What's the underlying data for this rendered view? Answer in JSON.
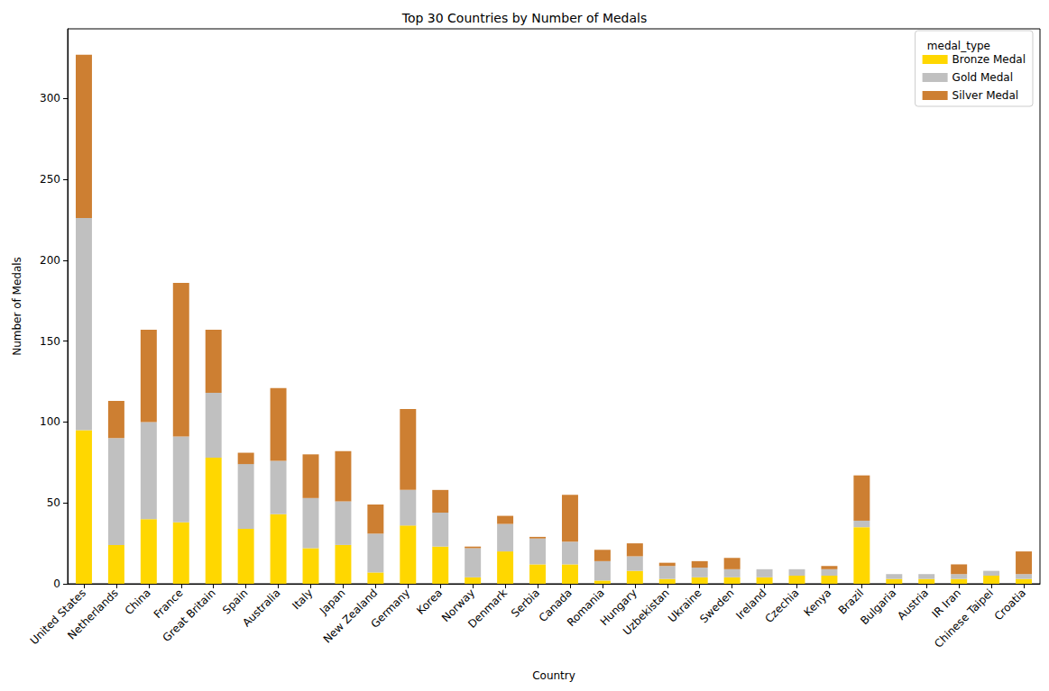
{
  "chart_data": {
    "type": "bar",
    "title": "Top 30 Countries by Number of Medals",
    "x_label": "Country",
    "y_label": "Number of Medals",
    "legend_title": "medal_type",
    "legend": "upper right",
    "stacked": true,
    "grid": false,
    "categories": [
      "United States",
      "Netherlands",
      "China",
      "France",
      "Great Britain",
      "Spain",
      "Australia",
      "Italy",
      "Japan",
      "New Zealand",
      "Germany",
      "Korea",
      "Norway",
      "Denmark",
      "Serbia",
      "Canada",
      "Romania",
      "Hungary",
      "Uzbekistan",
      "Ukraine",
      "Sweden",
      "Ireland",
      "Czechia",
      "Kenya",
      "Brazil",
      "Bulgaria",
      "Austria",
      "IR Iran",
      "Chinese Taipei",
      "Croatia"
    ],
    "series": [
      {
        "name": "Bronze Medal",
        "color": "#ffd700",
        "values": [
          95,
          24,
          40,
          38,
          78,
          34,
          43,
          22,
          24,
          7,
          36,
          23,
          4,
          20,
          12,
          12,
          2,
          8,
          3,
          4,
          4,
          4,
          5,
          5,
          35,
          3,
          3,
          3,
          5,
          3
        ]
      },
      {
        "name": "Gold Medal",
        "color": "#c0c0c0",
        "values": [
          131,
          66,
          60,
          53,
          40,
          40,
          33,
          31,
          27,
          24,
          22,
          21,
          18,
          17,
          16,
          14,
          12,
          9,
          8,
          6,
          5,
          5,
          4,
          4,
          4,
          3,
          3,
          3,
          3,
          3
        ]
      },
      {
        "name": "Silver Medal",
        "color": "#cd7f32",
        "values": [
          101,
          23,
          57,
          95,
          39,
          7,
          45,
          27,
          31,
          18,
          50,
          14,
          1,
          5,
          1,
          29,
          7,
          8,
          2,
          4,
          7,
          0,
          0,
          2,
          28,
          0,
          0,
          6,
          0,
          14
        ]
      }
    ],
    "ylim": [
      0,
      343
    ],
    "yticks": [
      0,
      50,
      100,
      150,
      200,
      250,
      300
    ]
  }
}
